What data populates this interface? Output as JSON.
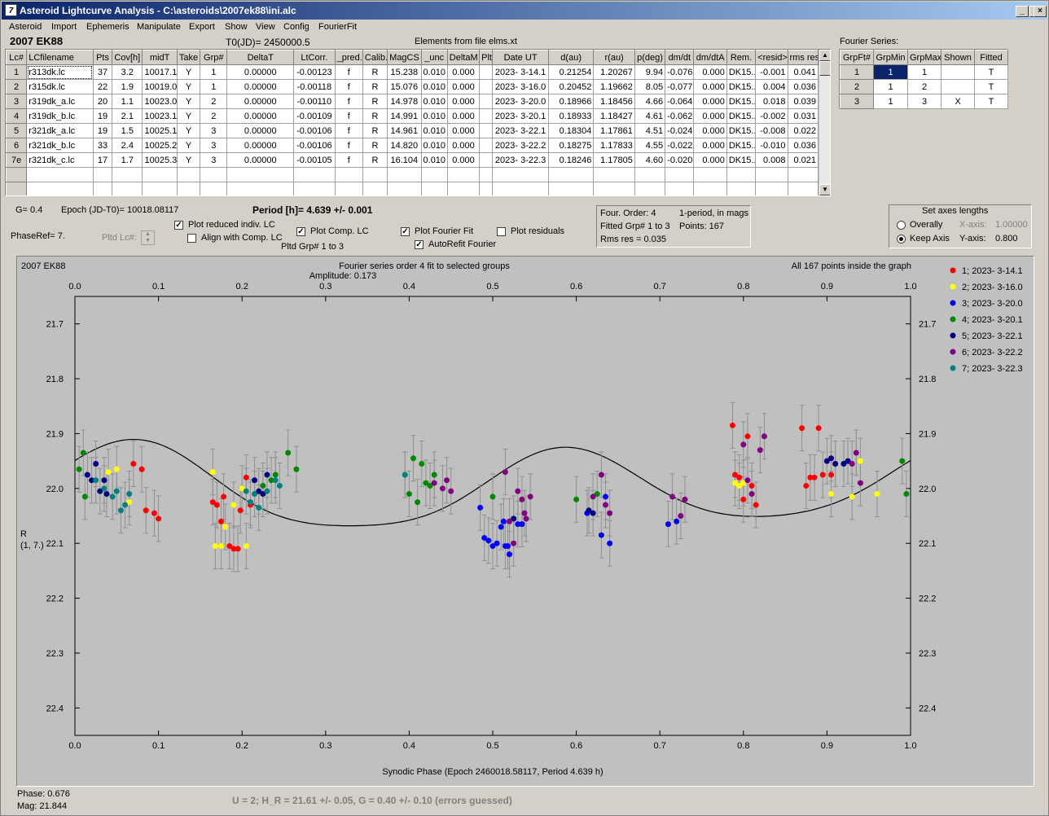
{
  "window": {
    "title": "Asteroid Lightcurve Analysis - C:\\asteroids\\2007ek88\\ini.alc",
    "icon": "app-icon"
  },
  "menu": [
    "Asteroid",
    "Import",
    "Ephemeris",
    "Manipulate",
    "Export",
    "Show",
    "View",
    "Config",
    "FourierFit"
  ],
  "header": {
    "asteroid": "2007 EK88",
    "t0": "T0(JD)= 2450000.5",
    "elements": "Elements from file elms.xt"
  },
  "lc_table": {
    "columns": [
      "Lc#",
      "LCfilename",
      "Pts",
      "Cov[h]",
      "midT",
      "Take",
      "Grp#",
      "DeltaT",
      "LtCorr.",
      "_pred.",
      "Calib.",
      "MagCS",
      "_unc",
      "DeltaM",
      "Plt",
      "Date UT",
      "d(au)",
      "r(au)",
      "p(deg)",
      "dm/dt",
      "dm/dtA",
      "Rem.",
      "<resid>",
      "rms res"
    ],
    "rows": [
      [
        "1",
        "r313dk.lc",
        "37",
        "3.2",
        "10017.1",
        "Y",
        "1",
        "0.00000",
        "-0.00123",
        "f",
        "R",
        "15.238",
        "0.010",
        "0.000",
        "",
        "2023- 3-14.1",
        "0.21254",
        "1.20267",
        "9.94",
        "-0.076",
        "0.000",
        "DK15...",
        "-0.001",
        "0.041"
      ],
      [
        "2",
        "r315dk.lc",
        "22",
        "1.9",
        "10019.0",
        "Y",
        "1",
        "0.00000",
        "-0.00118",
        "f",
        "R",
        "15.076",
        "0.010",
        "0.000",
        "",
        "2023- 3-16.0",
        "0.20452",
        "1.19662",
        "8.05",
        "-0.077",
        "0.000",
        "DK15...",
        "0.004",
        "0.036"
      ],
      [
        "3",
        "r319dk_a.lc",
        "20",
        "1.1",
        "10023.0",
        "Y",
        "2",
        "0.00000",
        "-0.00110",
        "f",
        "R",
        "14.978",
        "0.010",
        "0.000",
        "",
        "2023- 3-20.0",
        "0.18966",
        "1.18456",
        "4.66",
        "-0.064",
        "0.000",
        "DK15...",
        "0.018",
        "0.039"
      ],
      [
        "4",
        "r319dk_b.lc",
        "19",
        "2.1",
        "10023.1",
        "Y",
        "2",
        "0.00000",
        "-0.00109",
        "f",
        "R",
        "14.991",
        "0.010",
        "0.000",
        "",
        "2023- 3-20.1",
        "0.18933",
        "1.18427",
        "4.61",
        "-0.062",
        "0.000",
        "DK15...",
        "-0.002",
        "0.031"
      ],
      [
        "5",
        "r321dk_a.lc",
        "19",
        "1.5",
        "10025.1",
        "Y",
        "3",
        "0.00000",
        "-0.00106",
        "f",
        "R",
        "14.961",
        "0.010",
        "0.000",
        "",
        "2023- 3-22.1",
        "0.18304",
        "1.17861",
        "4.51",
        "-0.024",
        "0.000",
        "DK15...",
        "-0.008",
        "0.022"
      ],
      [
        "6",
        "r321dk_b.lc",
        "33",
        "2.4",
        "10025.2",
        "Y",
        "3",
        "0.00000",
        "-0.00106",
        "f",
        "R",
        "14.820",
        "0.010",
        "0.000",
        "",
        "2023- 3-22.2",
        "0.18275",
        "1.17833",
        "4.55",
        "-0.022",
        "0.000",
        "DK15...",
        "-0.010",
        "0.036"
      ],
      [
        "7e",
        "r321dk_c.lc",
        "17",
        "1.7",
        "10025.3",
        "Y",
        "3",
        "0.00000",
        "-0.00105",
        "f",
        "R",
        "16.104",
        "0.010",
        "0.000",
        "",
        "2023- 3-22.3",
        "0.18246",
        "1.17805",
        "4.60",
        "-0.020",
        "0.000",
        "DK15...",
        "0.008",
        "0.021"
      ]
    ]
  },
  "fourier_table": {
    "label": "Fourier Series:",
    "columns": [
      "GrpFt#",
      "GrpMin",
      "GrpMax",
      "Shown",
      "Fitted"
    ],
    "rows": [
      [
        "1",
        "1",
        "1",
        "",
        "T"
      ],
      [
        "2",
        "1",
        "2",
        "",
        "T"
      ],
      [
        "3",
        "1",
        "3",
        "X",
        "T"
      ]
    ]
  },
  "controls": {
    "g": "G= 0.4",
    "epoch": "Epoch (JD-T0)= 10018.08117",
    "period": "Period [h]= 4.639 +/- 0.001",
    "phaseref": "PhaseRef= 7.",
    "pltd_lc": "Pltd Lc#:",
    "plot_reduced": "Plot reduced indiv. LC",
    "align_comp": "Align with Comp. LC",
    "plot_comp": "Plot Comp. LC",
    "pltd_grp": "Pltd Grp#  1   to   3",
    "plot_fourier": "Plot Fourier Fit",
    "autorefit": "AutoRefit Fourier",
    "plot_residuals": "Plot residuals",
    "four_order": "Four. Order:  4",
    "one_period": "1-period, in mags",
    "fitted_grp": "Fitted Grp# 1 to 3",
    "points": "Points: 167",
    "rms": "Rms res     = 0.035",
    "axes_title": "Set axes lengths",
    "overally": "Overally",
    "keep_axis": "Keep Axis",
    "xaxis_label": "X-axis:",
    "xaxis_val": "1.00000",
    "yaxis_label": "Y-axis:",
    "yaxis_val": "0.800"
  },
  "footer": {
    "phase": "Phase:  0.676",
    "mag": "Mag:    21.844",
    "hg": "U = 2; H_R = 21.61 +/- 0.05, G = 0.40 +/- 0.10 (errors guessed)"
  },
  "chart_data": {
    "type": "scatter",
    "title": "Fourier series order 4 fit to selected groups",
    "subtitle": "Amplitude: 0.173",
    "object": "2007 EK88",
    "note": "All 167 points inside the graph",
    "xlabel": "Synodic Phase (Epoch 2460018.58117, Period 4.639 h)",
    "ylabel": "R",
    "ylabel2": "(1, 7.)",
    "xlim": [
      0,
      1
    ],
    "ylim": [
      22.45,
      21.65
    ],
    "xticks": [
      "0.0",
      "0.1",
      "0.2",
      "0.3",
      "0.4",
      "0.5",
      "0.6",
      "0.7",
      "0.8",
      "0.9",
      "1.0"
    ],
    "yticks": [
      "21.7",
      "21.8",
      "21.9",
      "22.0",
      "22.1",
      "22.2",
      "22.3",
      "22.4"
    ],
    "series": [
      {
        "name": "1; 2023- 3-14.1",
        "color": "#ff0000",
        "points": [
          [
            0.07,
            21.955
          ],
          [
            0.08,
            21.965
          ],
          [
            0.085,
            22.04
          ],
          [
            0.095,
            22.045
          ],
          [
            0.1,
            22.055
          ],
          [
            0.165,
            22.025
          ],
          [
            0.17,
            22.03
          ],
          [
            0.175,
            22.06
          ],
          [
            0.178,
            22.015
          ],
          [
            0.185,
            22.105
          ],
          [
            0.19,
            22.11
          ],
          [
            0.195,
            22.11
          ],
          [
            0.198,
            22.04
          ],
          [
            0.205,
            21.98
          ],
          [
            0.21,
            22.03
          ],
          [
            0.787,
            21.885
          ],
          [
            0.79,
            21.975
          ],
          [
            0.795,
            21.98
          ],
          [
            0.8,
            22.02
          ],
          [
            0.805,
            21.905
          ],
          [
            0.81,
            21.995
          ],
          [
            0.815,
            22.03
          ],
          [
            0.87,
            21.89
          ],
          [
            0.875,
            21.995
          ],
          [
            0.88,
            21.98
          ],
          [
            0.885,
            21.98
          ],
          [
            0.89,
            21.89
          ],
          [
            0.895,
            21.975
          ],
          [
            0.905,
            21.975
          ],
          [
            0.91,
            21.955
          ]
        ]
      },
      {
        "name": "2; 2023- 3-16.0",
        "color": "#ffff00",
        "points": [
          [
            0.04,
            21.97
          ],
          [
            0.05,
            21.965
          ],
          [
            0.065,
            22.025
          ],
          [
            0.165,
            21.97
          ],
          [
            0.168,
            22.105
          ],
          [
            0.175,
            22.105
          ],
          [
            0.18,
            22.07
          ],
          [
            0.19,
            22.03
          ],
          [
            0.2,
            22.0
          ],
          [
            0.205,
            22.105
          ],
          [
            0.79,
            21.99
          ],
          [
            0.795,
            21.995
          ],
          [
            0.8,
            21.99
          ],
          [
            0.905,
            22.01
          ],
          [
            0.93,
            22.015
          ],
          [
            0.935,
            21.935
          ],
          [
            0.94,
            21.95
          ],
          [
            0.96,
            22.01
          ]
        ]
      },
      {
        "name": "3; 2023- 3-20.0",
        "color": "#0000ff",
        "points": [
          [
            0.485,
            22.035
          ],
          [
            0.49,
            22.09
          ],
          [
            0.495,
            22.095
          ],
          [
            0.5,
            22.105
          ],
          [
            0.505,
            22.1
          ],
          [
            0.51,
            22.07
          ],
          [
            0.513,
            22.06
          ],
          [
            0.515,
            22.105
          ],
          [
            0.518,
            22.105
          ],
          [
            0.52,
            22.12
          ],
          [
            0.525,
            22.055
          ],
          [
            0.53,
            22.065
          ],
          [
            0.535,
            22.065
          ],
          [
            0.613,
            22.045
          ],
          [
            0.63,
            22.085
          ],
          [
            0.635,
            22.015
          ],
          [
            0.64,
            22.1
          ],
          [
            0.71,
            22.065
          ],
          [
            0.72,
            22.06
          ]
        ]
      },
      {
        "name": "4; 2023- 3-20.1",
        "color": "#008800",
        "points": [
          [
            0.005,
            21.965
          ],
          [
            0.01,
            21.935
          ],
          [
            0.012,
            22.015
          ],
          [
            0.225,
            21.995
          ],
          [
            0.235,
            21.985
          ],
          [
            0.24,
            21.975
          ],
          [
            0.255,
            21.935
          ],
          [
            0.265,
            21.965
          ],
          [
            0.395,
            21.975
          ],
          [
            0.4,
            22.01
          ],
          [
            0.405,
            21.945
          ],
          [
            0.41,
            22.025
          ],
          [
            0.415,
            21.955
          ],
          [
            0.42,
            21.99
          ],
          [
            0.425,
            21.995
          ],
          [
            0.43,
            21.975
          ],
          [
            0.5,
            22.015
          ],
          [
            0.6,
            22.02
          ],
          [
            0.625,
            22.01
          ],
          [
            0.99,
            21.95
          ],
          [
            0.995,
            22.01
          ]
        ]
      },
      {
        "name": "5; 2023- 3-22.1",
        "color": "#000080",
        "points": [
          [
            0.015,
            21.975
          ],
          [
            0.02,
            21.985
          ],
          [
            0.025,
            21.955
          ],
          [
            0.03,
            22.005
          ],
          [
            0.035,
            21.985
          ],
          [
            0.038,
            22.01
          ],
          [
            0.215,
            21.985
          ],
          [
            0.22,
            22.005
          ],
          [
            0.225,
            22.01
          ],
          [
            0.23,
            21.975
          ],
          [
            0.525,
            22.055
          ],
          [
            0.615,
            22.04
          ],
          [
            0.62,
            22.045
          ],
          [
            0.9,
            21.95
          ],
          [
            0.905,
            21.945
          ],
          [
            0.91,
            21.955
          ],
          [
            0.92,
            21.955
          ],
          [
            0.925,
            21.95
          ]
        ]
      },
      {
        "name": "6; 2023- 3-22.2",
        "color": "#800080",
        "points": [
          [
            0.43,
            21.99
          ],
          [
            0.44,
            22.0
          ],
          [
            0.445,
            21.985
          ],
          [
            0.45,
            22.005
          ],
          [
            0.515,
            21.97
          ],
          [
            0.52,
            22.06
          ],
          [
            0.525,
            22.1
          ],
          [
            0.53,
            22.005
          ],
          [
            0.535,
            22.02
          ],
          [
            0.538,
            22.045
          ],
          [
            0.54,
            22.055
          ],
          [
            0.545,
            22.015
          ],
          [
            0.62,
            22.015
          ],
          [
            0.63,
            21.975
          ],
          [
            0.635,
            22.03
          ],
          [
            0.64,
            22.045
          ],
          [
            0.715,
            22.015
          ],
          [
            0.725,
            22.05
          ],
          [
            0.73,
            22.02
          ],
          [
            0.8,
            21.92
          ],
          [
            0.805,
            21.985
          ],
          [
            0.81,
            22.01
          ],
          [
            0.82,
            21.93
          ],
          [
            0.825,
            21.905
          ],
          [
            0.93,
            21.955
          ],
          [
            0.935,
            21.935
          ],
          [
            0.94,
            21.99
          ]
        ]
      },
      {
        "name": "7; 2023- 3-22.3",
        "color": "#008080",
        "points": [
          [
            0.025,
            21.985
          ],
          [
            0.035,
            22.0
          ],
          [
            0.045,
            22.015
          ],
          [
            0.05,
            22.005
          ],
          [
            0.055,
            22.04
          ],
          [
            0.06,
            22.03
          ],
          [
            0.065,
            22.01
          ],
          [
            0.205,
            22.005
          ],
          [
            0.21,
            22.025
          ],
          [
            0.215,
            22.01
          ],
          [
            0.22,
            22.035
          ],
          [
            0.23,
            22.005
          ],
          [
            0.24,
            21.985
          ],
          [
            0.245,
            21.995
          ],
          [
            0.395,
            21.975
          ]
        ]
      }
    ]
  }
}
